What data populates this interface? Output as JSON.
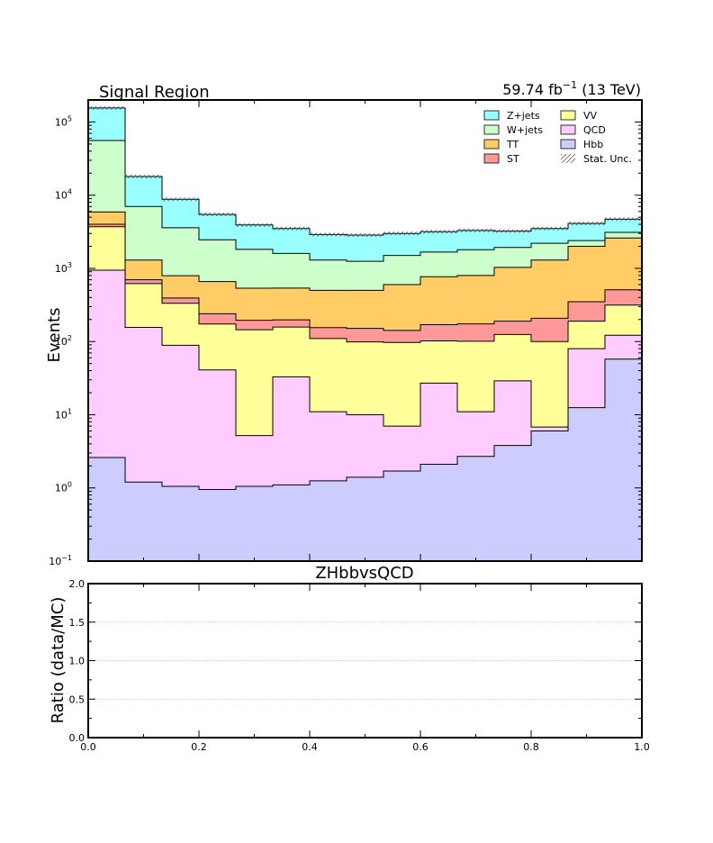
{
  "chart_data": [
    {
      "type": "area",
      "title": "Signal Region",
      "lumi_value": "59.74 fb",
      "lumi_exp": "−1",
      "lumi_energy": "(13 TeV)",
      "ylabel": "Events",
      "yscale": "log",
      "ylim": [
        0.1,
        200000
      ],
      "xlim": [
        0.0,
        1.0
      ],
      "y_tick_mantissa": [
        "10",
        "10",
        "10",
        "10",
        "10",
        "10",
        "10"
      ],
      "y_tick_exps": [
        "−1",
        "0",
        "1",
        "2",
        "3",
        "4",
        "5"
      ],
      "bin_edges": [
        0.0,
        0.0667,
        0.1333,
        0.2,
        0.2667,
        0.3333,
        0.4,
        0.4667,
        0.5333,
        0.6,
        0.6667,
        0.7333,
        0.8,
        0.8667,
        0.9333,
        1.0
      ],
      "stack_order": [
        "Hbb",
        "QCD",
        "VV",
        "ST",
        "TT",
        "W+jets",
        "Z+jets"
      ],
      "series": [
        {
          "name": "Hbb",
          "color": "#ccccff",
          "values": [
            2.6,
            1.2,
            1.05,
            0.95,
            1.05,
            1.1,
            1.25,
            1.4,
            1.7,
            2.1,
            2.7,
            3.8,
            6.0,
            12.5,
            57.5
          ]
        },
        {
          "name": "QCD",
          "color": "#ffccff",
          "values": [
            940,
            155,
            88,
            40,
            4.15,
            31.9,
            9.75,
            8.6,
            5.3,
            24.9,
            8.3,
            25.2,
            0.8,
            67.5,
            64.5
          ]
        },
        {
          "name": "VV",
          "color": "#ffff99",
          "values": [
            2757,
            463,
            244,
            133,
            140,
            125,
            99,
            89,
            90,
            75,
            90,
            96,
            93,
            110,
            193
          ]
        },
        {
          "name": "ST",
          "color": "#ff9999",
          "values": [
            300,
            80,
            60,
            66,
            50,
            40,
            45,
            52,
            45,
            68,
            73,
            65,
            108,
            160,
            195
          ]
        },
        {
          "name": "TT",
          "color": "#ffcc66",
          "values": [
            1900,
            600,
            400,
            420,
            340,
            340,
            345,
            350,
            458,
            600,
            625,
            840,
            1092,
            1650,
            2090
          ]
        },
        {
          "name": "W+jets",
          "color": "#ccffcc",
          "values": [
            49900,
            5700,
            2800,
            1800,
            1280,
            1060,
            800,
            750,
            900,
            900,
            1000,
            900,
            900,
            400,
            500
          ]
        },
        {
          "name": "Z+jets",
          "color": "#99ffff",
          "values": [
            100000,
            11000,
            5200,
            3000,
            2100,
            1900,
            1600,
            1600,
            1500,
            1500,
            1500,
            1300,
            1300,
            1700,
            1600
          ]
        }
      ],
      "stat_unc_label": "Stat. Unc.",
      "legend": [
        {
          "label": "Z+jets",
          "color": "#99ffff"
        },
        {
          "label": "VV",
          "color": "#ffff99"
        },
        {
          "label": "W+jets",
          "color": "#ccffcc"
        },
        {
          "label": "QCD",
          "color": "#ffccff"
        },
        {
          "label": "TT",
          "color": "#ffcc66"
        },
        {
          "label": "Hbb",
          "color": "#ccccff"
        },
        {
          "label": "ST",
          "color": "#ff9999"
        },
        {
          "label": "Stat. Unc.",
          "color": "hatch"
        }
      ],
      "legend_position": "top-right",
      "grid": false
    },
    {
      "type": "line",
      "title": "ZHbbvsQCD",
      "ylabel": "Ratio (data/MC)",
      "ylim": [
        0.0,
        2.0
      ],
      "xlim": [
        0.0,
        1.0
      ],
      "y_ticks": [
        "0.0",
        "0.5",
        "1.0",
        "1.5",
        "2.0"
      ],
      "x_ticks": [
        "0.0",
        "0.2",
        "0.4",
        "0.6",
        "0.8",
        "1.0"
      ],
      "y_gridlines": [
        0.5,
        1.0,
        1.5
      ],
      "series": [],
      "grid": true
    }
  ]
}
